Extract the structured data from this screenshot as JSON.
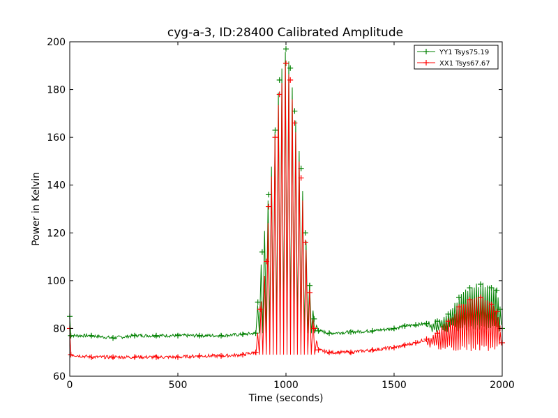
{
  "chart_data": {
    "type": "line",
    "title": "cyg-a-3, ID:28400 Calibrated Amplitude",
    "xlabel": "Time (seconds)",
    "ylabel": "Power in Kelvin",
    "xlim": [
      0,
      2000
    ],
    "ylim": [
      60,
      200
    ],
    "xticks": [
      0,
      500,
      1000,
      1500,
      2000
    ],
    "yticks": [
      60,
      80,
      100,
      120,
      140,
      160,
      180,
      200
    ],
    "grid": false,
    "legend_position": "top-right",
    "markers": "plus",
    "series": [
      {
        "name": "YY1 Tsys75.19",
        "color": "#008000",
        "points": [
          [
            0,
            85
          ],
          [
            5,
            77
          ],
          [
            100,
            77
          ],
          [
            200,
            76
          ],
          [
            300,
            77
          ],
          [
            400,
            77
          ],
          [
            500,
            77
          ],
          [
            600,
            77
          ],
          [
            700,
            77
          ],
          [
            800,
            77.5
          ],
          [
            860,
            78
          ],
          [
            870,
            91
          ],
          [
            890,
            112
          ],
          [
            920,
            136
          ],
          [
            950,
            163
          ],
          [
            970,
            184
          ],
          [
            1000,
            197
          ],
          [
            1020,
            189
          ],
          [
            1040,
            171
          ],
          [
            1070,
            147
          ],
          [
            1090,
            120
          ],
          [
            1110,
            98
          ],
          [
            1130,
            84
          ],
          [
            1150,
            79
          ],
          [
            1200,
            78
          ],
          [
            1300,
            78.5
          ],
          [
            1400,
            79
          ],
          [
            1500,
            80
          ],
          [
            1550,
            81
          ],
          [
            1600,
            81.5
          ],
          [
            1650,
            82
          ],
          [
            1700,
            83
          ],
          [
            1750,
            86
          ],
          [
            1800,
            93
          ],
          [
            1850,
            97
          ],
          [
            1900,
            98.5
          ],
          [
            1950,
            97
          ],
          [
            1975,
            96
          ],
          [
            1990,
            88
          ],
          [
            2000,
            80
          ]
        ]
      },
      {
        "name": "XX1 Tsys67.67",
        "color": "#ff0000",
        "points": [
          [
            0,
            80
          ],
          [
            5,
            69
          ],
          [
            100,
            68
          ],
          [
            200,
            68
          ],
          [
            300,
            68
          ],
          [
            400,
            68
          ],
          [
            500,
            68
          ],
          [
            600,
            68.5
          ],
          [
            700,
            68.5
          ],
          [
            800,
            69
          ],
          [
            860,
            70
          ],
          [
            880,
            88
          ],
          [
            910,
            108
          ],
          [
            920,
            131
          ],
          [
            950,
            160
          ],
          [
            970,
            178
          ],
          [
            1000,
            191
          ],
          [
            1020,
            184
          ],
          [
            1040,
            166
          ],
          [
            1070,
            143
          ],
          [
            1090,
            116
          ],
          [
            1110,
            95
          ],
          [
            1130,
            80
          ],
          [
            1150,
            71
          ],
          [
            1200,
            70
          ],
          [
            1300,
            70
          ],
          [
            1400,
            71
          ],
          [
            1500,
            72
          ],
          [
            1550,
            73
          ],
          [
            1600,
            74
          ],
          [
            1650,
            75.5
          ],
          [
            1700,
            78
          ],
          [
            1750,
            83
          ],
          [
            1800,
            89
          ],
          [
            1850,
            92
          ],
          [
            1900,
            93
          ],
          [
            1950,
            90
          ],
          [
            1975,
            87
          ],
          [
            1990,
            80
          ],
          [
            2000,
            74
          ]
        ]
      }
    ]
  }
}
